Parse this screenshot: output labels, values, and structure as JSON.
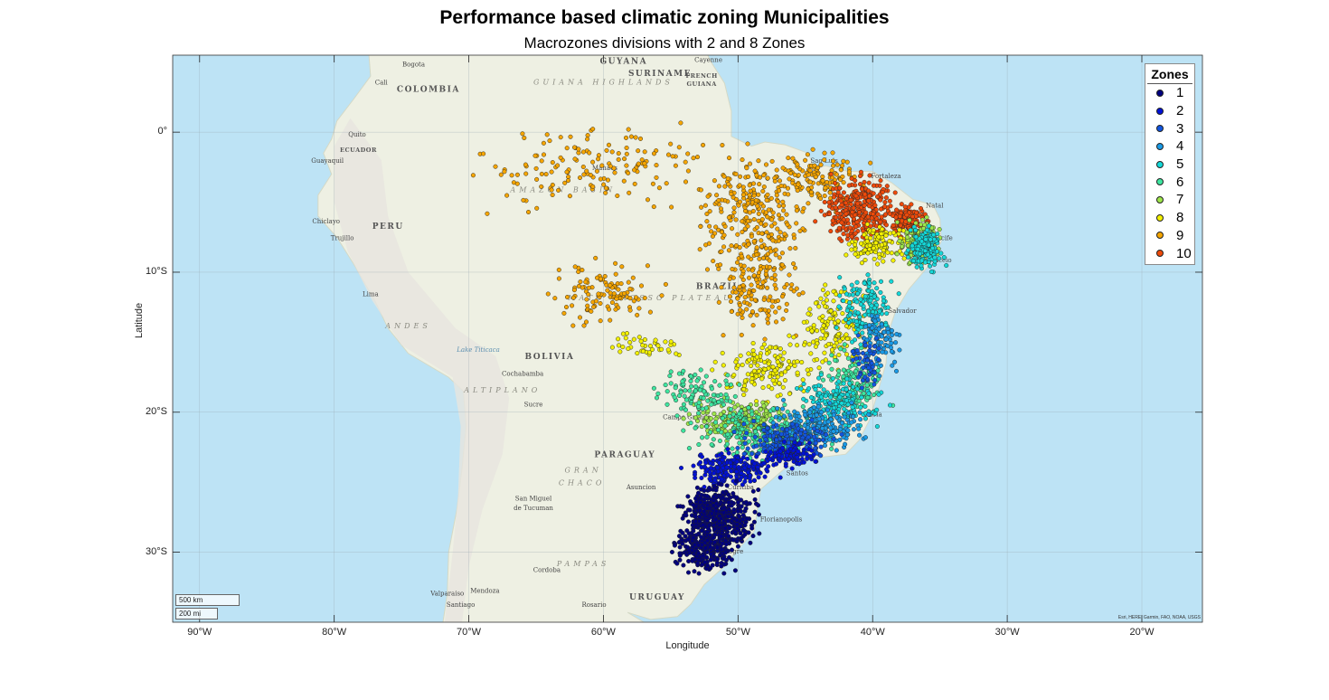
{
  "title": "Performance based climatic zoning Municipalities",
  "subtitle": "Macrozones divisions with 2 and 8 Zones",
  "axes": {
    "xlabel": "Longitude",
    "ylabel": "Latitude",
    "xticks": [
      "90°W",
      "80°W",
      "70°W",
      "60°W",
      "50°W",
      "40°W",
      "30°W",
      "20°W"
    ],
    "xtick_values": [
      -90,
      -80,
      -70,
      -60,
      -50,
      -40,
      -30,
      -20
    ],
    "yticks": [
      "0°",
      "10°S",
      "20°S",
      "30°S"
    ],
    "ytick_values": [
      0,
      -10,
      -20,
      -30
    ],
    "lon_range": [
      -92,
      -15.5
    ],
    "lat_range": [
      -35,
      5.5
    ]
  },
  "legend": {
    "title": "Zones",
    "items": [
      {
        "label": "1",
        "color": "#00007f"
      },
      {
        "label": "2",
        "color": "#0011d6"
      },
      {
        "label": "3",
        "color": "#1155e0"
      },
      {
        "label": "4",
        "color": "#1a9ae6"
      },
      {
        "label": "5",
        "color": "#14d8d8"
      },
      {
        "label": "6",
        "color": "#3ee6a0"
      },
      {
        "label": "7",
        "color": "#9ee64a"
      },
      {
        "label": "8",
        "color": "#f2f000"
      },
      {
        "label": "9",
        "color": "#f5a500"
      },
      {
        "label": "10",
        "color": "#ee4a0a"
      }
    ]
  },
  "map_labels": [
    {
      "text": "Bogota",
      "lon": -74.1,
      "lat": 4.7,
      "style": "city"
    },
    {
      "text": "Cali",
      "lon": -76.5,
      "lat": 3.4,
      "style": "city"
    },
    {
      "text": "COLOMBIA",
      "lon": -73,
      "lat": 2.9,
      "style": "country"
    },
    {
      "text": "GUYANA",
      "lon": -58.5,
      "lat": 4.9,
      "style": "country"
    },
    {
      "text": "SURINAME",
      "lon": -55.8,
      "lat": 4.0,
      "style": "country"
    },
    {
      "text": "FRENCH",
      "lon": -52.7,
      "lat": 3.9,
      "style": "small"
    },
    {
      "text": "GUIANA",
      "lon": -52.7,
      "lat": 3.3,
      "style": "small"
    },
    {
      "text": "Cayenne",
      "lon": -52.2,
      "lat": 5.0,
      "style": "city"
    },
    {
      "text": "GUIANA HIGHLANDS",
      "lon": -60,
      "lat": 3.4,
      "style": "region"
    },
    {
      "text": "Quito",
      "lon": -78.3,
      "lat": -0.3,
      "style": "city"
    },
    {
      "text": "ECUADOR",
      "lon": -78.2,
      "lat": -1.4,
      "style": "small"
    },
    {
      "text": "Guayaquil",
      "lon": -80.5,
      "lat": -2.2,
      "style": "city"
    },
    {
      "text": "Manaus",
      "lon": -59.9,
      "lat": -2.7,
      "style": "city"
    },
    {
      "text": "AMAZON BASIN",
      "lon": -63,
      "lat": -4.3,
      "style": "region"
    },
    {
      "text": "Sao Luis",
      "lon": -43.6,
      "lat": -2.2,
      "style": "city"
    },
    {
      "text": "Fortaleza",
      "lon": -39,
      "lat": -3.3,
      "style": "city"
    },
    {
      "text": "Natal",
      "lon": -35.4,
      "lat": -5.4,
      "style": "city"
    },
    {
      "text": "Recife",
      "lon": -34.8,
      "lat": -7.7,
      "style": "city"
    },
    {
      "text": "Maceio",
      "lon": -35.0,
      "lat": -9.3,
      "style": "city"
    },
    {
      "text": "Chiclayo",
      "lon": -80.6,
      "lat": -6.5,
      "style": "city"
    },
    {
      "text": "PERU",
      "lon": -76,
      "lat": -6.9,
      "style": "country"
    },
    {
      "text": "Trujillo",
      "lon": -79.4,
      "lat": -7.7,
      "style": "city"
    },
    {
      "text": "Lima",
      "lon": -77.3,
      "lat": -11.7,
      "style": "city"
    },
    {
      "text": "BRAZIL",
      "lon": -51.5,
      "lat": -11.2,
      "style": "country"
    },
    {
      "text": "MATO GROSSO PLATEAU",
      "lon": -56.5,
      "lat": -12,
      "style": "region"
    },
    {
      "text": "Salvador",
      "lon": -37.8,
      "lat": -12.9,
      "style": "city"
    },
    {
      "text": "ANDES",
      "lon": -74.5,
      "lat": -14,
      "style": "region"
    },
    {
      "text": "Lake Titicaca",
      "lon": -69.3,
      "lat": -15.7,
      "style": "water"
    },
    {
      "text": "BOLIVIA",
      "lon": -64,
      "lat": -16.2,
      "style": "country"
    },
    {
      "text": "Cochabamba",
      "lon": -66,
      "lat": -17.4,
      "style": "city"
    },
    {
      "text": "ALTIPLANO",
      "lon": -67.5,
      "lat": -18.6,
      "style": "region"
    },
    {
      "text": "Sucre",
      "lon": -65.2,
      "lat": -19.6,
      "style": "city"
    },
    {
      "text": "Vitoria",
      "lon": -40.1,
      "lat": -20.3,
      "style": "city"
    },
    {
      "text": "Campo Grande",
      "lon": -53.8,
      "lat": -20.5,
      "style": "city"
    },
    {
      "text": "PARAGUAY",
      "lon": -58.4,
      "lat": -23.2,
      "style": "country"
    },
    {
      "text": "Santos",
      "lon": -45.6,
      "lat": -24.5,
      "style": "city"
    },
    {
      "text": "GRAN",
      "lon": -61.5,
      "lat": -24.3,
      "style": "region"
    },
    {
      "text": "CHACO",
      "lon": -61.6,
      "lat": -25.2,
      "style": "region"
    },
    {
      "text": "Asuncion",
      "lon": -57.2,
      "lat": -25.5,
      "style": "city"
    },
    {
      "text": "Curitiba",
      "lon": -49.8,
      "lat": -25.5,
      "style": "city"
    },
    {
      "text": "San Miguel",
      "lon": -65.2,
      "lat": -26.3,
      "style": "city"
    },
    {
      "text": "de Tucuman",
      "lon": -65.2,
      "lat": -27.0,
      "style": "city"
    },
    {
      "text": "Florianopolis",
      "lon": -46.8,
      "lat": -27.8,
      "style": "city"
    },
    {
      "text": "Porto Alegre",
      "lon": -51.1,
      "lat": -30.1,
      "style": "city"
    },
    {
      "text": "Cordoba",
      "lon": -64.2,
      "lat": -31.4,
      "style": "city"
    },
    {
      "text": "PAMPAS",
      "lon": -61.5,
      "lat": -31,
      "style": "region"
    },
    {
      "text": "Mendoza",
      "lon": -68.8,
      "lat": -32.9,
      "style": "city"
    },
    {
      "text": "Valparaiso",
      "lon": -71.6,
      "lat": -33.1,
      "style": "city"
    },
    {
      "text": "Rosario",
      "lon": -60.7,
      "lat": -33.9,
      "style": "city"
    },
    {
      "text": "URUGUAY",
      "lon": -56,
      "lat": -33.4,
      "style": "country"
    },
    {
      "text": "Santiago",
      "lon": -70.6,
      "lat": -33.9,
      "style": "city"
    },
    {
      "text": "Atl",
      "lon": -18.2,
      "lat": -6.5,
      "style": "water"
    },
    {
      "text": "Oc",
      "lon": -18.1,
      "lat": -7.3,
      "style": "water"
    }
  ],
  "scalebar": {
    "km": "500 km",
    "mi": "200 mi"
  },
  "attribution": "Esri, HERE, Garmin, FAO, NOAA, USGS",
  "chart_data": {
    "type": "scatter",
    "title": "Performance based climatic zoning Municipalities",
    "subtitle": "Macrozones divisions with 2 and 8 Zones",
    "xlabel": "Longitude",
    "ylabel": "Latitude",
    "xlim": [
      -92,
      -15.5
    ],
    "ylim": [
      -35,
      5.5
    ],
    "legend_placement": "top-right",
    "basemap": "topographic",
    "grid": true,
    "point_clusters": [
      {
        "zone": 9,
        "label": "9",
        "lon": -61,
        "lat": -2.5,
        "spread_lon": 7,
        "spread_lat": 2.5,
        "count": 150
      },
      {
        "zone": 9,
        "label": "9",
        "lon": -60,
        "lat": -11.5,
        "spread_lon": 3.5,
        "spread_lat": 1.8,
        "count": 110
      },
      {
        "zone": 9,
        "label": "9",
        "lon": -49,
        "lat": -5.5,
        "spread_lon": 3,
        "spread_lat": 3.5,
        "count": 260
      },
      {
        "zone": 9,
        "label": "9",
        "lon": -48.5,
        "lat": -11,
        "spread_lon": 2.5,
        "spread_lat": 3,
        "count": 160
      },
      {
        "zone": 9,
        "label": "9",
        "lon": -44,
        "lat": -3.5,
        "spread_lon": 3,
        "spread_lat": 1.5,
        "count": 130
      },
      {
        "zone": 10,
        "label": "10",
        "lon": -41,
        "lat": -5.5,
        "spread_lon": 2.3,
        "spread_lat": 2,
        "count": 300
      },
      {
        "zone": 10,
        "label": "10",
        "lon": -37.5,
        "lat": -6.2,
        "spread_lon": 1.2,
        "spread_lat": 0.8,
        "count": 150
      },
      {
        "zone": 8,
        "label": "8",
        "lon": -39.5,
        "lat": -8,
        "spread_lon": 2,
        "spread_lat": 1,
        "count": 120
      },
      {
        "zone": 8,
        "label": "8",
        "lon": -43,
        "lat": -14,
        "spread_lon": 2,
        "spread_lat": 2.5,
        "count": 140
      },
      {
        "zone": 8,
        "label": "8",
        "lon": -48,
        "lat": -17,
        "spread_lon": 2.5,
        "spread_lat": 1.8,
        "count": 150
      },
      {
        "zone": 8,
        "label": "8",
        "lon": -56.5,
        "lat": -15.3,
        "spread_lon": 2.5,
        "spread_lat": 0.8,
        "count": 40
      },
      {
        "zone": 7,
        "label": "7",
        "lon": -36.5,
        "lat": -7.8,
        "spread_lon": 1.2,
        "spread_lat": 1.3,
        "count": 150
      },
      {
        "zone": 7,
        "label": "7",
        "lon": -50,
        "lat": -20.5,
        "spread_lon": 3,
        "spread_lat": 1.2,
        "count": 200
      },
      {
        "zone": 6,
        "label": "6",
        "lon": -53,
        "lat": -18.5,
        "spread_lon": 2.5,
        "spread_lat": 1.8,
        "count": 110
      },
      {
        "zone": 6,
        "label": "6",
        "lon": -48,
        "lat": -21.5,
        "spread_lon": 4,
        "spread_lat": 1.5,
        "count": 240
      },
      {
        "zone": 6,
        "label": "6",
        "lon": -41.5,
        "lat": -18,
        "spread_lon": 2,
        "spread_lat": 2,
        "count": 130
      },
      {
        "zone": 5,
        "label": "5",
        "lon": -36,
        "lat": -8.3,
        "spread_lon": 1,
        "spread_lat": 1.3,
        "count": 160
      },
      {
        "zone": 5,
        "label": "5",
        "lon": -40.5,
        "lat": -12.5,
        "spread_lon": 1.8,
        "spread_lat": 2,
        "count": 150
      },
      {
        "zone": 5,
        "label": "5",
        "lon": -42.5,
        "lat": -19.5,
        "spread_lon": 2.5,
        "spread_lat": 1.5,
        "count": 180
      },
      {
        "zone": 4,
        "label": "4",
        "lon": -44,
        "lat": -21,
        "spread_lon": 3,
        "spread_lat": 1.3,
        "count": 200
      },
      {
        "zone": 4,
        "label": "4",
        "lon": -39.5,
        "lat": -15,
        "spread_lon": 1.2,
        "spread_lat": 2,
        "count": 90
      },
      {
        "zone": 3,
        "label": "3",
        "lon": -46.5,
        "lat": -22,
        "spread_lon": 3,
        "spread_lat": 1,
        "count": 160
      },
      {
        "zone": 3,
        "label": "3",
        "lon": -40.5,
        "lat": -16.5,
        "spread_lon": 1,
        "spread_lat": 1.5,
        "count": 50
      },
      {
        "zone": 2,
        "label": "2",
        "lon": -50.5,
        "lat": -24,
        "spread_lon": 2.5,
        "spread_lat": 1,
        "count": 220
      },
      {
        "zone": 2,
        "label": "2",
        "lon": -46,
        "lat": -23,
        "spread_lon": 1.5,
        "spread_lat": 0.7,
        "count": 100
      },
      {
        "zone": 1,
        "label": "1",
        "lon": -51.5,
        "lat": -27.5,
        "spread_lon": 2.2,
        "spread_lat": 1.8,
        "count": 500
      },
      {
        "zone": 1,
        "label": "1",
        "lon": -52.5,
        "lat": -30,
        "spread_lon": 1.8,
        "spread_lat": 1.3,
        "count": 200
      }
    ]
  }
}
